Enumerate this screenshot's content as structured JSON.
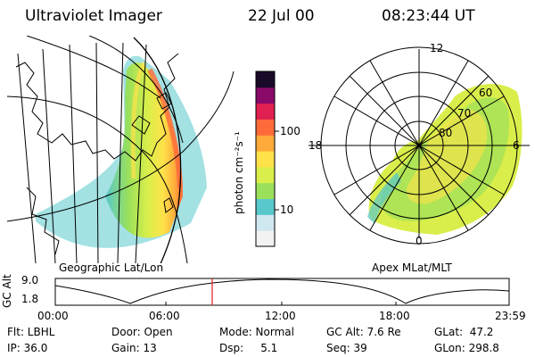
{
  "header": {
    "title": "Ultraviolet Imager",
    "date": "22 Jul 00",
    "time": "08:23:44 UT"
  },
  "panels": {
    "left_caption": "Geographic Lat/Lon",
    "right_caption": "Apex MLat/MLT"
  },
  "colorbar": {
    "unit_label": "photon cm⁻²s⁻¹",
    "tick_100": "100",
    "tick_10": "10",
    "colors": [
      "#f2f2f2",
      "#cfe7ef",
      "#58c8cc",
      "#9be05a",
      "#d9ee4a",
      "#ffe24a",
      "#ffaa3a",
      "#ff6a3a",
      "#e02050",
      "#8a0a6a",
      "#1a0a2a"
    ]
  },
  "polar": {
    "label_top": "12",
    "label_left": "18",
    "label_right": "6",
    "label_bottom": "0",
    "label_60": "60",
    "label_70": "70",
    "label_80": "80"
  },
  "altitude_plot": {
    "ylabel": "GC Alt",
    "y_hi": "9.0",
    "y_lo": "1.8",
    "x_ticks": [
      "00:00",
      "06:00",
      "12:00",
      "18:00",
      "23:59"
    ],
    "marker_color": "#e02020"
  },
  "info": {
    "flt": "Flt: LBHL",
    "ip": "IP: 36.0",
    "door": "Door: Open",
    "gain": "Gain: 13",
    "mode": "Mode: Normal",
    "dsp": "Dsp:     5.1",
    "gcalt": "GC Alt: 7.6 Re",
    "seq": "Seq: 39",
    "glat": "GLat:  47.2",
    "glon": "GLon: 298.8"
  }
}
